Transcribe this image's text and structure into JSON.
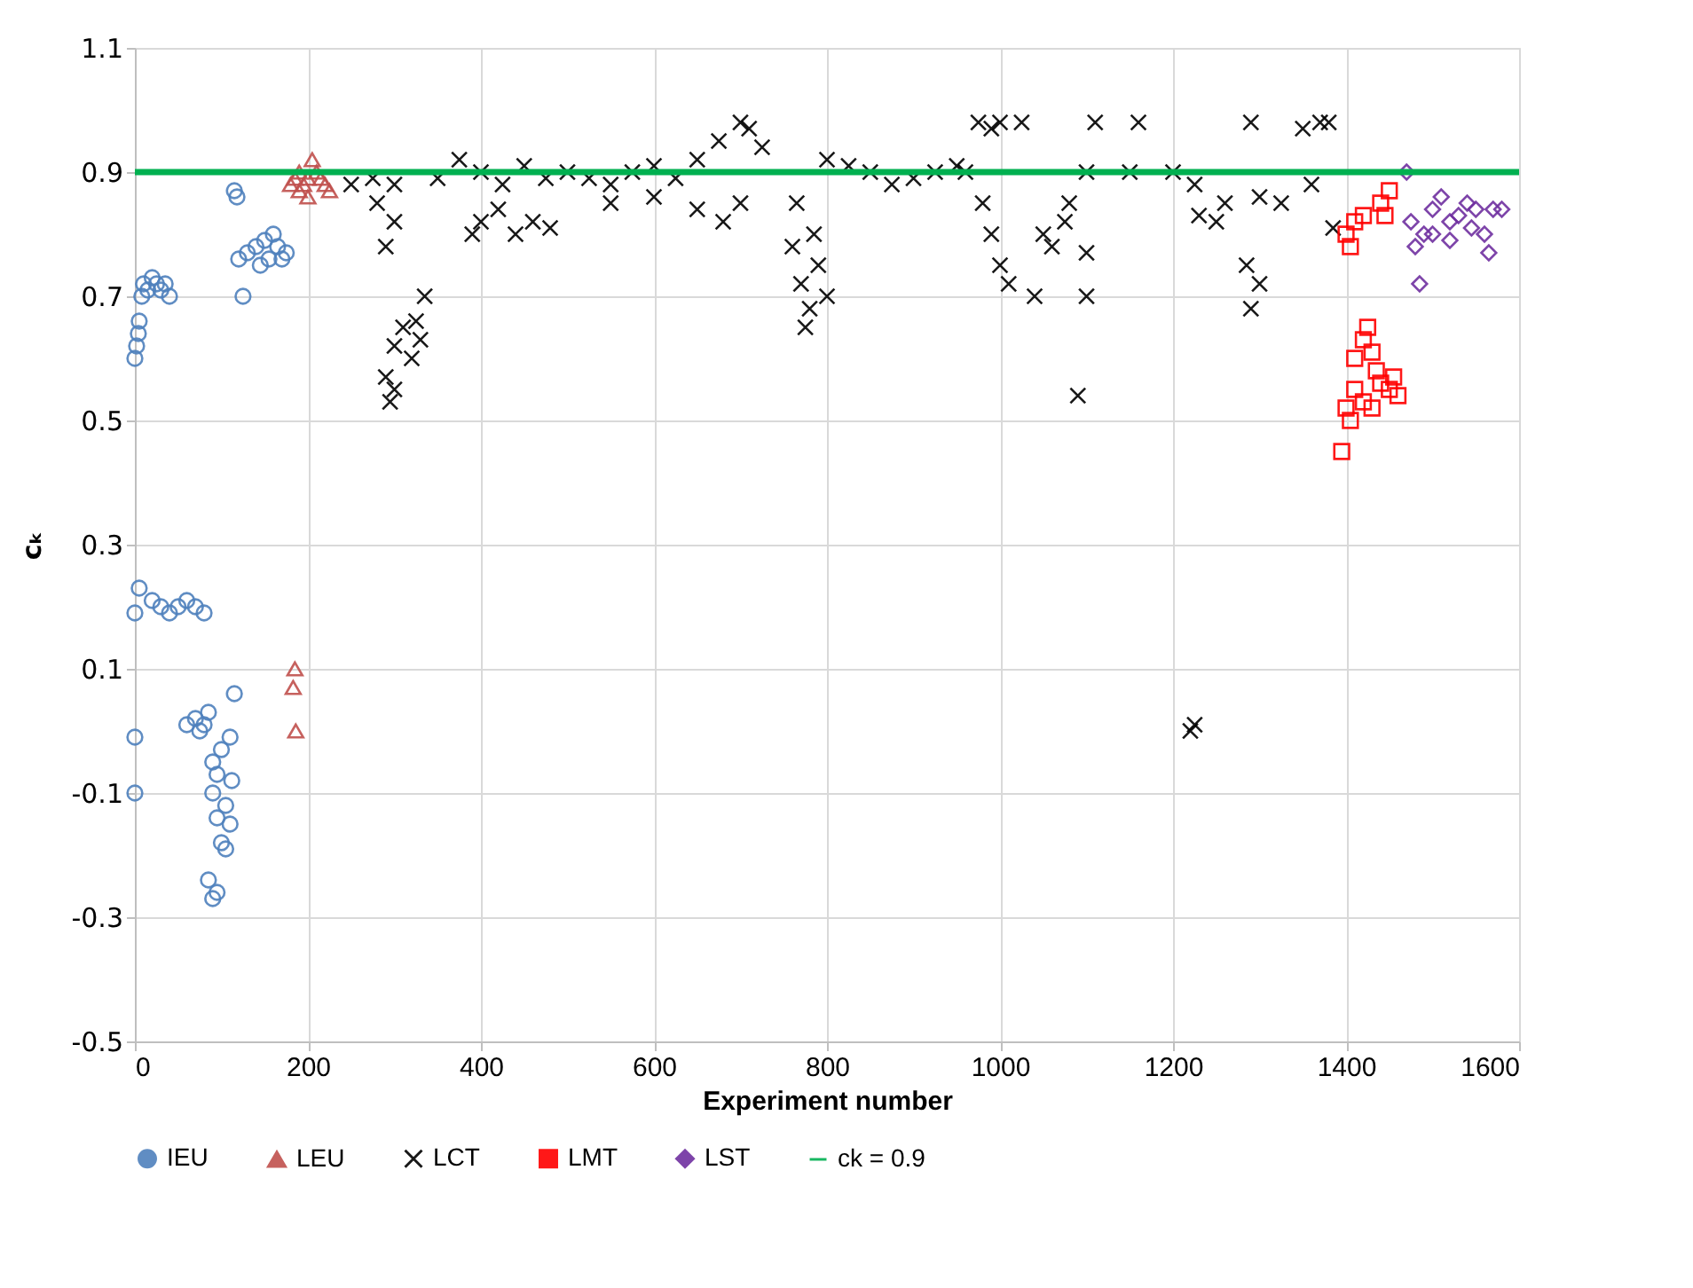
{
  "chart_data": {
    "type": "scatter",
    "xlabel": "Experiment number",
    "ylabel": "cₖ",
    "xlim": [
      0,
      1600
    ],
    "xticks": [
      0,
      200,
      400,
      600,
      800,
      1000,
      1200,
      1400,
      1600
    ],
    "ylim": [
      -0.5,
      1.1
    ],
    "yticks": [
      -0.5,
      -0.3,
      -0.1,
      0.1,
      0.3,
      0.5,
      0.7,
      0.9,
      1.1
    ],
    "grid": true,
    "legend": "bottom",
    "series": [
      {
        "name": "IEU",
        "color": "#4f81bd",
        "marker": "circle",
        "x": [
          0,
          2,
          4,
          5,
          8,
          10,
          15,
          20,
          25,
          30,
          35,
          40,
          0,
          5,
          20,
          30,
          40,
          50,
          60,
          70,
          80,
          0,
          0,
          60,
          70,
          75,
          80,
          85,
          90,
          95,
          100,
          105,
          110,
          100,
          95,
          90,
          85,
          90,
          95,
          110,
          115,
          112,
          105,
          115,
          118,
          120,
          125,
          130,
          140,
          150,
          160,
          165,
          170,
          175,
          145,
          155
        ],
        "values": [
          0.6,
          0.62,
          0.64,
          0.66,
          0.7,
          0.72,
          0.71,
          0.73,
          0.72,
          0.71,
          0.72,
          0.7,
          0.19,
          0.23,
          0.21,
          0.2,
          0.19,
          0.2,
          0.21,
          0.2,
          0.19,
          -0.01,
          -0.1,
          0.01,
          0.02,
          0.0,
          0.01,
          0.03,
          -0.05,
          -0.07,
          -0.03,
          -0.12,
          -0.15,
          -0.18,
          -0.14,
          -0.1,
          -0.24,
          -0.27,
          -0.26,
          -0.01,
          0.06,
          -0.08,
          -0.19,
          0.87,
          0.86,
          0.76,
          0.7,
          0.77,
          0.78,
          0.79,
          0.8,
          0.78,
          0.76,
          0.77,
          0.75,
          0.76
        ]
      },
      {
        "name": "LEU",
        "color": "#c0504d",
        "marker": "triangle",
        "x": [
          180,
          185,
          190,
          195,
          200,
          205,
          210,
          215,
          220,
          225,
          190,
          200,
          185,
          183,
          186
        ],
        "values": [
          0.88,
          0.89,
          0.9,
          0.88,
          0.89,
          0.92,
          0.9,
          0.89,
          0.88,
          0.87,
          0.87,
          0.86,
          0.1,
          0.07,
          0.0
        ]
      },
      {
        "name": "LCT",
        "color": "#000000",
        "marker": "cross",
        "x": [
          290,
          295,
          300,
          310,
          320,
          330,
          335,
          325,
          300,
          290,
          300,
          280,
          390,
          400,
          420,
          440,
          460,
          480,
          250,
          275,
          300,
          350,
          375,
          400,
          425,
          450,
          475,
          500,
          525,
          550,
          575,
          600,
          625,
          650,
          675,
          700,
          710,
          725,
          700,
          680,
          650,
          550,
          600,
          760,
          770,
          780,
          790,
          800,
          785,
          775,
          765,
          800,
          825,
          850,
          875,
          900,
          925,
          950,
          975,
          1000,
          1025,
          990,
          960,
          990,
          1000,
          1010,
          980,
          1040,
          1050,
          1060,
          1075,
          1080,
          1090,
          1100,
          1110,
          1160,
          1100,
          1150,
          1200,
          1225,
          1250,
          1260,
          1230,
          1220,
          1225,
          1290,
          1300,
          1290,
          1285,
          1300,
          1325,
          1350,
          1370,
          1380,
          1385,
          1360,
          1100
        ],
        "values": [
          0.57,
          0.53,
          0.62,
          0.65,
          0.6,
          0.63,
          0.7,
          0.66,
          0.55,
          0.78,
          0.82,
          0.85,
          0.8,
          0.82,
          0.84,
          0.8,
          0.82,
          0.81,
          0.88,
          0.89,
          0.88,
          0.89,
          0.92,
          0.9,
          0.88,
          0.91,
          0.89,
          0.9,
          0.89,
          0.88,
          0.9,
          0.91,
          0.89,
          0.92,
          0.95,
          0.98,
          0.97,
          0.94,
          0.85,
          0.82,
          0.84,
          0.85,
          0.86,
          0.78,
          0.72,
          0.68,
          0.75,
          0.7,
          0.8,
          0.65,
          0.85,
          0.92,
          0.91,
          0.9,
          0.88,
          0.89,
          0.9,
          0.91,
          0.98,
          0.98,
          0.98,
          0.97,
          0.9,
          0.8,
          0.75,
          0.72,
          0.85,
          0.7,
          0.8,
          0.78,
          0.82,
          0.85,
          0.54,
          0.77,
          0.98,
          0.98,
          0.9,
          0.9,
          0.9,
          0.88,
          0.82,
          0.85,
          0.83,
          0.0,
          0.01,
          0.98,
          0.72,
          0.68,
          0.75,
          0.86,
          0.85,
          0.97,
          0.98,
          0.98,
          0.81,
          0.88,
          0.7
        ]
      },
      {
        "name": "LMT",
        "color": "#ff0000",
        "marker": "square",
        "x": [
          1395,
          1400,
          1405,
          1410,
          1410,
          1420,
          1425,
          1430,
          1435,
          1440,
          1450,
          1460,
          1455,
          1420,
          1430,
          1400,
          1405,
          1410,
          1420,
          1440,
          1450,
          1445
        ],
        "values": [
          0.45,
          0.52,
          0.5,
          0.55,
          0.6,
          0.63,
          0.65,
          0.61,
          0.58,
          0.56,
          0.55,
          0.54,
          0.57,
          0.53,
          0.52,
          0.8,
          0.78,
          0.82,
          0.83,
          0.85,
          0.87,
          0.83
        ]
      },
      {
        "name": "LST",
        "color": "#7030a0",
        "marker": "diamond",
        "x": [
          1470,
          1475,
          1480,
          1485,
          1490,
          1500,
          1510,
          1520,
          1530,
          1540,
          1550,
          1560,
          1565,
          1570,
          1580,
          1500,
          1520,
          1545
        ],
        "values": [
          0.9,
          0.82,
          0.78,
          0.72,
          0.8,
          0.84,
          0.86,
          0.82,
          0.83,
          0.85,
          0.84,
          0.8,
          0.77,
          0.84,
          0.84,
          0.8,
          0.79,
          0.81
        ]
      },
      {
        "name": "ck = 0.9",
        "type": "line",
        "color": "#00b050",
        "marker": "none",
        "line_style": "solid",
        "x": [
          0,
          1600
        ],
        "values": [
          0.9,
          0.9
        ]
      }
    ]
  }
}
